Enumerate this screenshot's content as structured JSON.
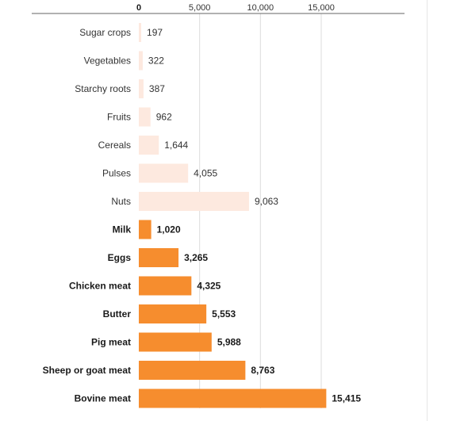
{
  "chart_data": {
    "type": "bar",
    "orientation": "horizontal",
    "xlim": [
      0,
      17000
    ],
    "ticks": [
      {
        "value": 0,
        "label": "0"
      },
      {
        "value": 5000,
        "label": "5,000"
      },
      {
        "value": 10000,
        "label": "10,000"
      },
      {
        "value": 15000,
        "label": "15,000"
      }
    ],
    "grid": true,
    "colors": {
      "plant": "#fde9df",
      "animal": "#f68d2e",
      "grid": "#dcdcdc",
      "axis": "#666666",
      "text": "#333333",
      "strong_text": "#1a1a1a"
    },
    "series": [
      {
        "group": "plant",
        "categories": [
          "Sugar crops",
          "Vegetables",
          "Starchy roots",
          "Fruits",
          "Cereals",
          "Pulses",
          "Nuts"
        ],
        "values": [
          197,
          322,
          387,
          962,
          1644,
          4055,
          9063
        ],
        "labels": [
          "197",
          "322",
          "387",
          "962",
          "1,644",
          "4,055",
          "9,063"
        ]
      },
      {
        "group": "animal",
        "categories": [
          "Milk",
          "Eggs",
          "Chicken meat",
          "Butter",
          "Pig meat",
          "Sheep or goat meat",
          "Bovine meat"
        ],
        "values": [
          1020,
          3265,
          4325,
          5553,
          5988,
          8763,
          15415
        ],
        "labels": [
          "1,020",
          "3,265",
          "4,325",
          "5,553",
          "5,988",
          "8,763",
          "15,415"
        ]
      }
    ]
  }
}
